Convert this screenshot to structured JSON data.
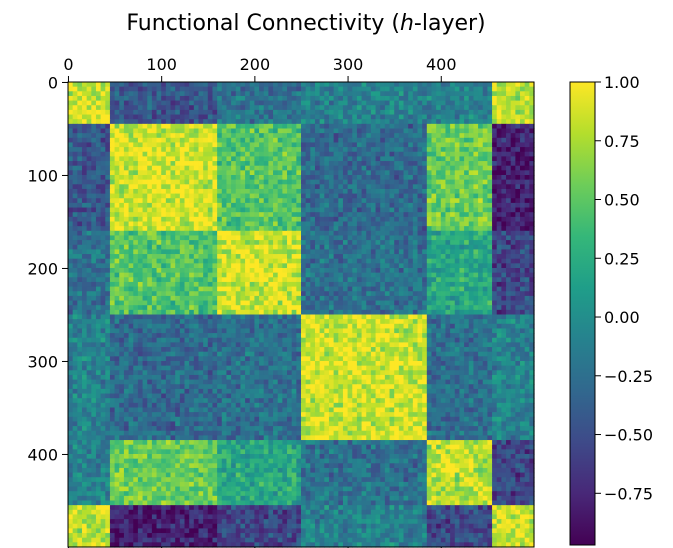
{
  "chart_data": {
    "type": "heatmap",
    "title_prefix": "Functional Connectivity (",
    "title_italic": "h",
    "title_suffix": "-layer)",
    "size": 500,
    "x_ticks": [
      0,
      100,
      200,
      300,
      400
    ],
    "y_ticks": [
      0,
      100,
      200,
      300,
      400
    ],
    "x_tick_labels": [
      "0",
      "100",
      "200",
      "300",
      "400"
    ],
    "y_tick_labels": [
      "0",
      "100",
      "200",
      "300",
      "400"
    ],
    "clim": [
      -0.97,
      1.0
    ],
    "colorbar_ticks": [
      1.0,
      0.75,
      0.5,
      0.25,
      0.0,
      -0.25,
      -0.5,
      -0.75
    ],
    "colorbar_labels": [
      "1.00",
      "0.75",
      "0.50",
      "0.25",
      "0.00",
      "−0.25",
      "−0.50",
      "−0.75"
    ],
    "colormap": "viridis",
    "grid": false,
    "block_boundaries": [
      0,
      43,
      160,
      248,
      385,
      457,
      500
    ],
    "block_matrix": [
      [
        0.85,
        -0.45,
        -0.25,
        -0.1,
        -0.1,
        0.8
      ],
      [
        -0.45,
        0.85,
        0.45,
        -0.3,
        0.55,
        -0.8
      ],
      [
        -0.25,
        0.45,
        0.85,
        -0.25,
        0.2,
        -0.55
      ],
      [
        -0.1,
        -0.3,
        -0.25,
        0.85,
        -0.25,
        -0.1
      ],
      [
        -0.1,
        0.55,
        0.2,
        -0.25,
        0.75,
        -0.55
      ],
      [
        0.8,
        -0.8,
        -0.55,
        -0.1,
        -0.55,
        0.85
      ]
    ]
  }
}
